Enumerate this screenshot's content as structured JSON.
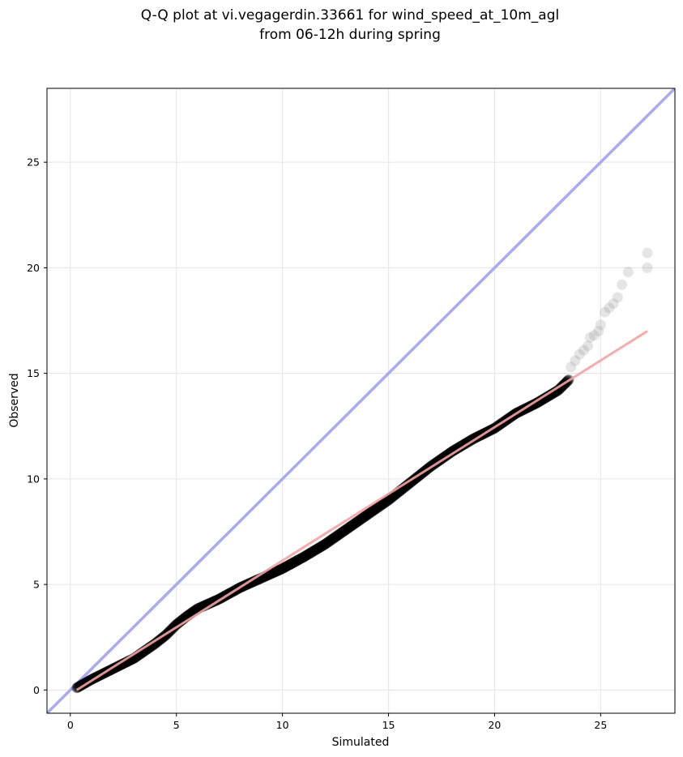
{
  "chart_data": {
    "type": "scatter",
    "title": [
      "Q-Q plot at vi.vegagerdin.33661 for wind_speed_at_10m_agl",
      "from 06-12h during spring"
    ],
    "xlabel": "Simulated",
    "ylabel": "Observed",
    "xlim": [
      -1.1,
      28.5
    ],
    "ylim": [
      -1.1,
      28.5
    ],
    "xticks": [
      0,
      5,
      10,
      15,
      20,
      25
    ],
    "yticks": [
      0,
      5,
      10,
      15,
      20,
      25
    ],
    "grid": true,
    "legend": "none",
    "reference_line": {
      "name": "1:1 line",
      "color": "#aaaaf2",
      "x": [
        -1.1,
        28.5
      ],
      "y": [
        -1.1,
        28.5
      ]
    },
    "fit_line": {
      "name": "fit",
      "color": "#f4a3a3",
      "x": [
        0.3,
        27.2
      ],
      "y": [
        0.0,
        17.0
      ]
    },
    "series": [
      {
        "name": "quantiles",
        "color": "#000000",
        "dense_segments": [
          [
            0.3,
            0.1
          ],
          [
            1.0,
            0.5
          ],
          [
            2.0,
            1.0
          ],
          [
            3.0,
            1.5
          ],
          [
            4.0,
            2.2
          ],
          [
            4.5,
            2.6
          ],
          [
            5.0,
            3.1
          ],
          [
            5.5,
            3.5
          ],
          [
            6.0,
            3.85
          ],
          [
            7.0,
            4.3
          ],
          [
            8.0,
            4.85
          ],
          [
            9.0,
            5.3
          ],
          [
            10.0,
            5.75
          ],
          [
            11.0,
            6.3
          ],
          [
            12.0,
            6.9
          ],
          [
            13.0,
            7.6
          ],
          [
            14.0,
            8.3
          ],
          [
            15.0,
            9.0
          ],
          [
            16.0,
            9.8
          ],
          [
            17.0,
            10.6
          ],
          [
            18.0,
            11.3
          ],
          [
            19.0,
            11.9
          ],
          [
            20.0,
            12.4
          ],
          [
            21.0,
            13.1
          ],
          [
            22.0,
            13.6
          ],
          [
            23.0,
            14.2
          ],
          [
            23.5,
            14.7
          ]
        ],
        "tail_points": [
          [
            23.6,
            15.3
          ],
          [
            23.8,
            15.6
          ],
          [
            24.0,
            15.9
          ],
          [
            24.2,
            16.1
          ],
          [
            24.4,
            16.3
          ],
          [
            24.5,
            16.7
          ],
          [
            24.7,
            16.8
          ],
          [
            24.9,
            17.0
          ],
          [
            25.0,
            17.3
          ],
          [
            25.2,
            17.9
          ],
          [
            25.4,
            18.1
          ],
          [
            25.6,
            18.3
          ],
          [
            25.8,
            18.6
          ],
          [
            26.0,
            19.2
          ],
          [
            26.3,
            19.8
          ],
          [
            27.2,
            20.0
          ],
          [
            27.2,
            20.7
          ]
        ]
      }
    ]
  }
}
